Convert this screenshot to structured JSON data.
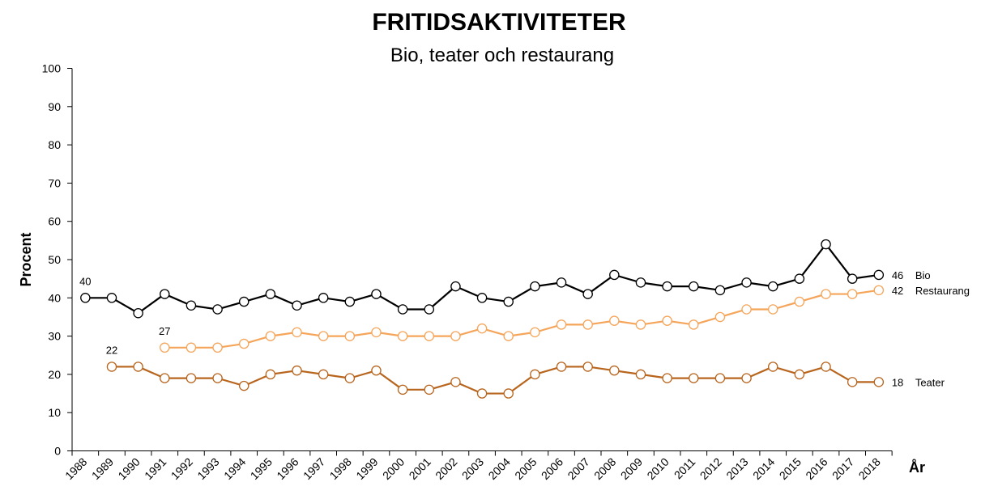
{
  "chart_data": {
    "type": "line",
    "title": "FRITIDSAKTIVITETER",
    "subtitle": "Bio, teater och restaurang",
    "xlabel": "År",
    "ylabel": "Procent",
    "ylim": [
      0,
      100
    ],
    "yticks": [
      0,
      10,
      20,
      30,
      40,
      50,
      60,
      70,
      80,
      90,
      100
    ],
    "grid": false,
    "categories": [
      "1988",
      "1989",
      "1990",
      "1991",
      "1992",
      "1993",
      "1994",
      "1995",
      "1996",
      "1997",
      "1998",
      "1999",
      "2000",
      "2001",
      "2002",
      "2003",
      "2004",
      "2005",
      "2006",
      "2007",
      "2008",
      "2009",
      "2010",
      "2011",
      "2012",
      "2013",
      "2014",
      "2015",
      "2016",
      "2017",
      "2018"
    ],
    "series": [
      {
        "name": "Bio",
        "color": "#000000",
        "values": [
          40,
          40,
          36,
          41,
          38,
          37,
          39,
          41,
          38,
          40,
          39,
          41,
          37,
          37,
          43,
          40,
          39,
          43,
          44,
          41,
          46,
          44,
          43,
          43,
          42,
          44,
          43,
          45,
          54,
          45,
          46
        ],
        "start_label": "40",
        "end_label": "46"
      },
      {
        "name": "Restaurang",
        "color": "#F5A55A",
        "values": [
          null,
          null,
          null,
          27,
          27,
          27,
          28,
          30,
          31,
          30,
          30,
          31,
          30,
          30,
          30,
          32,
          30,
          31,
          33,
          33,
          34,
          33,
          34,
          33,
          35,
          37,
          37,
          39,
          41,
          41,
          42
        ],
        "start_label": "27",
        "end_label": "42"
      },
      {
        "name": "Teater",
        "color": "#B8651E",
        "values": [
          null,
          22,
          22,
          19,
          19,
          19,
          17,
          20,
          21,
          20,
          19,
          21,
          16,
          16,
          18,
          15,
          15,
          20,
          22,
          22,
          21,
          20,
          19,
          19,
          19,
          19,
          22,
          20,
          22,
          18,
          18
        ],
        "start_label": "22",
        "end_label": "18"
      }
    ]
  }
}
